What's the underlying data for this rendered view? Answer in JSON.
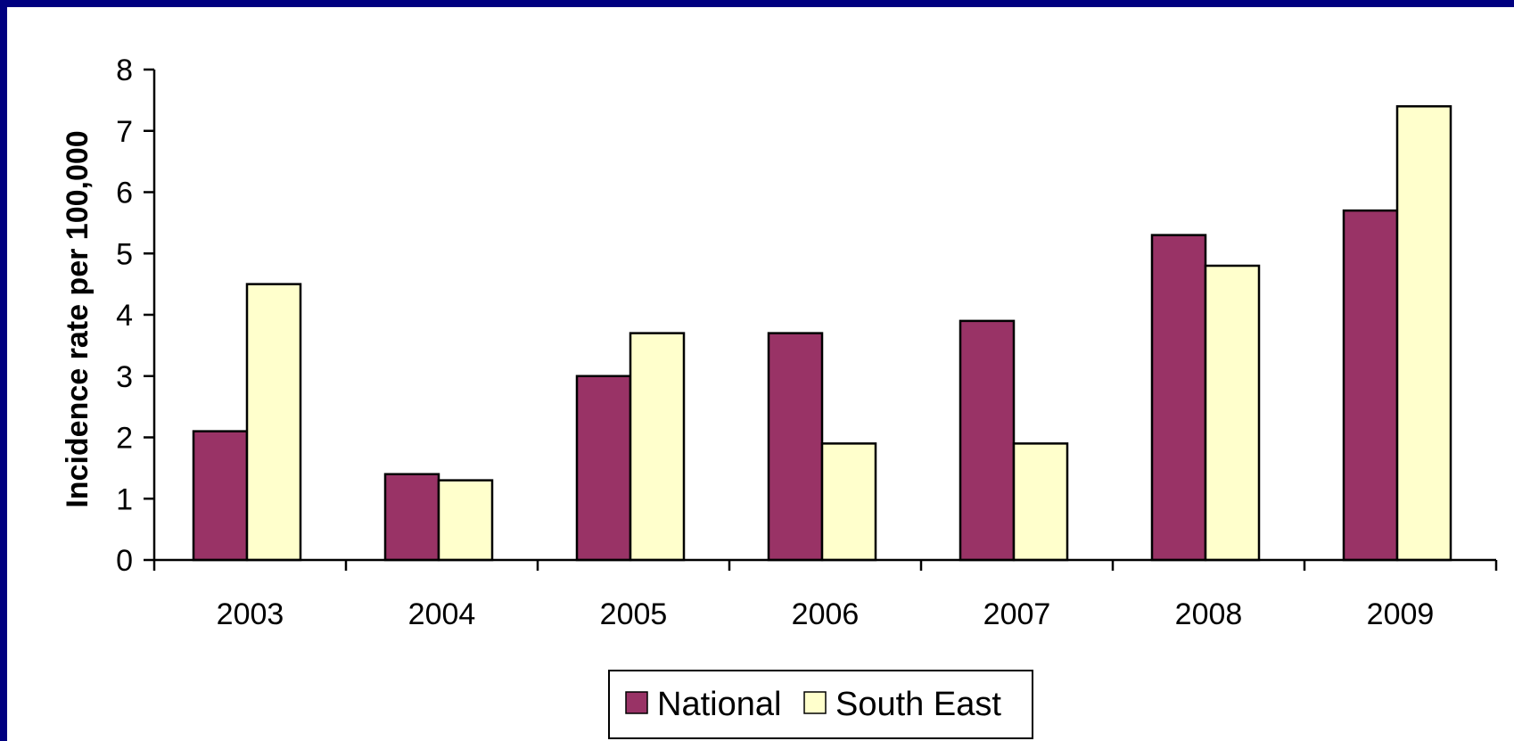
{
  "chart_data": {
    "type": "bar",
    "categories": [
      "2003",
      "2004",
      "2005",
      "2006",
      "2007",
      "2008",
      "2009"
    ],
    "series": [
      {
        "name": "National",
        "color": "#993366",
        "values": [
          2.1,
          1.4,
          3.0,
          3.7,
          3.9,
          5.3,
          5.7
        ]
      },
      {
        "name": "South East",
        "color": "#ffffcc",
        "values": [
          4.5,
          1.3,
          3.7,
          1.9,
          1.9,
          4.8,
          7.4
        ]
      }
    ],
    "ylabel": "Incidence rate per 100,000",
    "xlabel": "",
    "title": "",
    "ylim": [
      0,
      8
    ],
    "yticks": [
      "0",
      "1",
      "2",
      "3",
      "4",
      "5",
      "6",
      "7",
      "8"
    ],
    "grid": false,
    "legend_position": "bottom-center"
  }
}
